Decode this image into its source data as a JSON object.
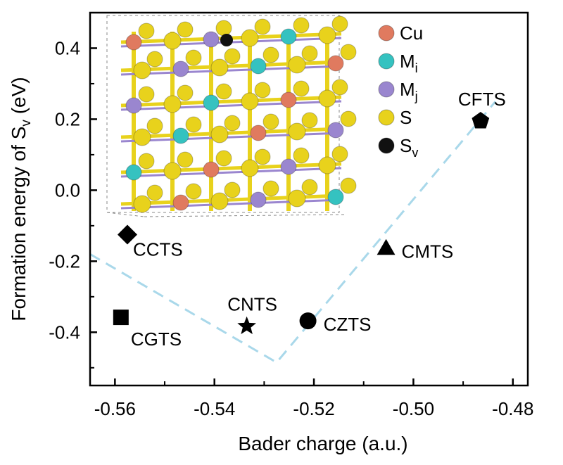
{
  "chart_data": {
    "type": "scatter",
    "xlabel": "Bader charge (a.u.)",
    "ylabel": "Formation energy of S",
    "ylabel_sub": "v",
    "ylabel_unit": " (eV)",
    "xlim": [
      -0.565,
      -0.477
    ],
    "ylim": [
      -0.55,
      0.5
    ],
    "xticks": [
      -0.56,
      -0.54,
      -0.52,
      -0.5,
      -0.48
    ],
    "xtick_labels": [
      "-0.56",
      "-0.54",
      "-0.52",
      "-0.50",
      "-0.48"
    ],
    "yticks": [
      -0.4,
      -0.2,
      0.0,
      0.2,
      0.4
    ],
    "ytick_labels": [
      "-0.4",
      "-0.2",
      "0.0",
      "0.2",
      "0.4"
    ],
    "points": [
      {
        "label": "CGTS",
        "x": -0.5588,
        "y": -0.358,
        "marker": "square"
      },
      {
        "label": "CCTS",
        "x": -0.5575,
        "y": -0.125,
        "marker": "diamond"
      },
      {
        "label": "CNTS",
        "x": -0.5335,
        "y": -0.383,
        "marker": "star"
      },
      {
        "label": "CZTS",
        "x": -0.5212,
        "y": -0.368,
        "marker": "circle"
      },
      {
        "label": "CMTS",
        "x": -0.5055,
        "y": -0.163,
        "marker": "triangle"
      },
      {
        "label": "CFTS",
        "x": -0.4865,
        "y": 0.195,
        "marker": "pentagon"
      }
    ],
    "guide_line": {
      "style": "dashed",
      "color": "#a9d8ea",
      "x": [
        -0.565,
        -0.5275,
        -0.4835
      ],
      "y": [
        -0.18,
        -0.485,
        0.25
      ]
    },
    "inset_legend": [
      {
        "label": "Cu",
        "sub": "",
        "color": "#e07a5f"
      },
      {
        "label": "M",
        "sub": "i",
        "color": "#35c2c0"
      },
      {
        "label": "M",
        "sub": "j",
        "color": "#9a86cf"
      },
      {
        "label": "S",
        "sub": "",
        "color": "#e8d21c"
      },
      {
        "label": "S",
        "sub": "v",
        "color": "#111111"
      }
    ]
  }
}
